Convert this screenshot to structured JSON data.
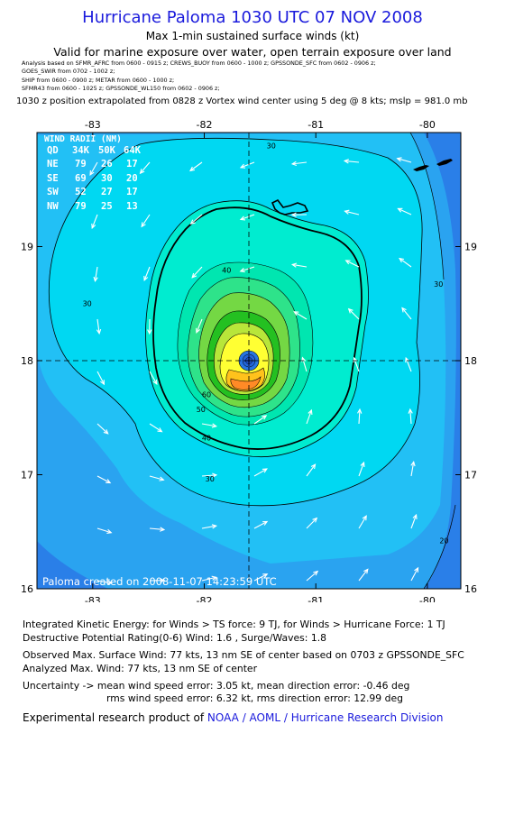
{
  "header": {
    "title": "Hurricane Paloma 1030 UTC 07 NOV 2008",
    "subtitle1": "Max 1-min sustained surface winds (kt)",
    "subtitle2": "Valid for marine exposure over water, open terrain exposure over land",
    "analysis_lines": [
      "Analysis based on  SFMR_AFRC from 0600 - 0915 z;  CREWS_BUOY from 0600 - 1000 z;  GPSSONDE_SFC from 0602 - 0906 z;",
      "GOES_SWIR from 0702 - 1002 z;",
      "SHIP from 0600 - 0900 z;  METAR from 0600 - 1000 z;",
      "SFMR43 from 0600 - 1025 z;  GPSSONDE_WL150 from 0602 - 0906 z;"
    ],
    "position_line": "1030 z position extrapolated from 0828 z Vortex wind center using 5 deg @ 8 kts; mslp = 981.0 mb"
  },
  "map": {
    "lon_min": -83.5,
    "lon_max": -79.7,
    "lat_min": 16.0,
    "lat_max": 20.0,
    "lon_ticks": [
      -83,
      -82,
      -81,
      -80
    ],
    "lat_ticks": [
      16,
      17,
      18,
      19
    ],
    "lon_tick_labels": [
      "-83",
      "-82",
      "-81",
      "-80"
    ],
    "lat_tick_labels": [
      "16",
      "17",
      "18",
      "19"
    ],
    "center": {
      "lon": -81.65,
      "lat": 17.98
    },
    "contour_labels": [
      {
        "text": "30",
        "lon": -81.4,
        "lat": 19.86
      },
      {
        "text": "30",
        "lon": -83.05,
        "lat": 18.48
      },
      {
        "text": "30",
        "lon": -81.95,
        "lat": 16.94
      },
      {
        "text": "30",
        "lon": -79.9,
        "lat": 18.65
      },
      {
        "text": "40",
        "lon": -81.8,
        "lat": 18.77
      },
      {
        "text": "40",
        "lon": -81.98,
        "lat": 17.3
      },
      {
        "text": "50",
        "lon": -82.03,
        "lat": 17.55
      },
      {
        "text": "60",
        "lon": -81.98,
        "lat": 17.68
      },
      {
        "text": "20",
        "lon": -79.85,
        "lat": 16.4
      }
    ],
    "wind_radii": {
      "heading": "WIND RADII (NM)",
      "columns": [
        "QD",
        "34K",
        "50K",
        "64K"
      ],
      "rows": [
        [
          "NE",
          "79",
          "26",
          "17"
        ],
        [
          "SE",
          "69",
          "30",
          "20"
        ],
        [
          "SW",
          "52",
          "27",
          "17"
        ],
        [
          "NW",
          "79",
          "25",
          "13"
        ]
      ]
    },
    "created_label": "Paloma  created on  2008-11-07 14:23:59 UTC",
    "colors": {
      "c0": "#2a7fe8",
      "c10": "#2aa3f0",
      "c20": "#22c0f5",
      "c30": "#00d8f2",
      "c40": "#00ecd0",
      "c45": "#2ee38a",
      "c50": "#74d844",
      "c55": "#24c021",
      "c60": "#b8e63a",
      "c65": "#ffff33",
      "c70": "#ffc21c",
      "c75": "#ff8a26"
    }
  },
  "footer": {
    "ike": "Integrated Kinetic Energy:  for Winds > TS force: 9 TJ,  for Winds > Hurricane Force: 1 TJ",
    "dpr": "Destructive Potential Rating(0-6)   Wind: 1.6 , Surge/Waves: 1.8",
    "observed": "Observed Max. Surface Wind: 77 kts, 13 nm SE of center based on 0703 z GPSSONDE_SFC",
    "analyzed": "Analyzed Max. Wind: 77 kts, 13 nm SE of center",
    "uncert1": "Uncertainty -> mean wind speed error: 3.05 kt,   mean direction error:  -0.46 deg",
    "uncert2": "rms wind speed error: 6.32 kt,   rms direction error: 12.99 deg",
    "credit_prefix": "Experimental research product of ",
    "credit_org": "NOAA / AOML / Hurricane Research Division"
  }
}
